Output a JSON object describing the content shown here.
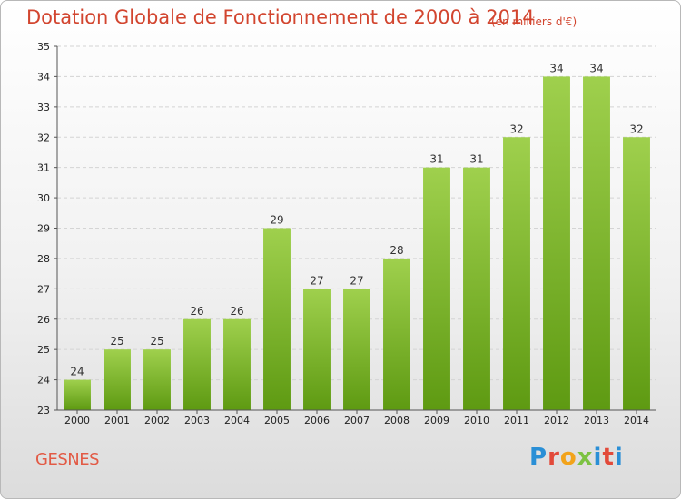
{
  "header": {
    "title": "Dotation Globale de Fonctionnement de 2000 à 2014",
    "subtitle": "(en milliers d'€)"
  },
  "footer": {
    "commune": "GESNES",
    "logo": "Proxiti"
  },
  "colors": {
    "title": "#d2452f",
    "bar_top": "#9fd04d",
    "bar_bottom": "#5e9a12",
    "logo_blue": "#2a8fd6",
    "logo_red": "#e24a3a",
    "logo_orange": "#f2a31b",
    "logo_green": "#7cc242"
  },
  "chart_data": {
    "type": "bar",
    "title": "Dotation Globale de Fonctionnement de 2000 à 2014",
    "subtitle": "(en milliers d'€)",
    "categories": [
      "2000",
      "2001",
      "2002",
      "2003",
      "2004",
      "2005",
      "2006",
      "2007",
      "2008",
      "2009",
      "2010",
      "2011",
      "2012",
      "2013",
      "2014"
    ],
    "values": [
      24,
      25,
      25,
      26,
      26,
      29,
      27,
      27,
      28,
      31,
      31,
      32,
      34,
      34,
      32
    ],
    "ylim": [
      23,
      35
    ],
    "yticks": [
      23,
      24,
      25,
      26,
      27,
      28,
      29,
      30,
      31,
      32,
      33,
      34,
      35
    ],
    "grid": true,
    "xlabel": "",
    "ylabel": ""
  }
}
